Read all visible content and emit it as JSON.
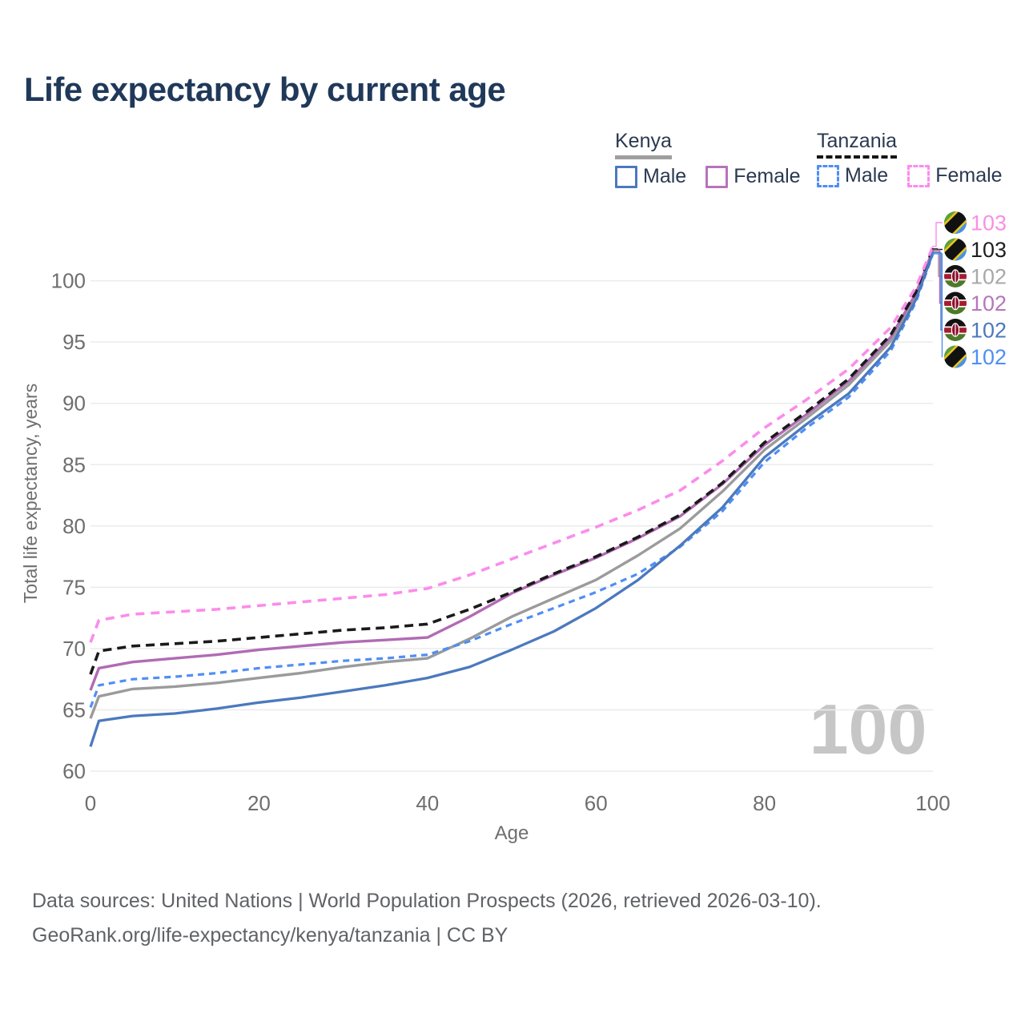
{
  "title": "Life expectancy by current age",
  "legend": {
    "groups": [
      {
        "label": "Kenya",
        "line_style": "solid",
        "underline_color": "#9e9e9e",
        "items": [
          {
            "label": "Male",
            "color": "#4b79bd",
            "dashed": false
          },
          {
            "label": "Female",
            "color": "#b873bd",
            "dashed": false
          }
        ]
      },
      {
        "label": "Tanzania",
        "line_style": "dashed",
        "underline_color": "#151515",
        "items": [
          {
            "label": "Male",
            "color": "#4f8ef5",
            "dashed": true
          },
          {
            "label": "Female",
            "color": "#fb8cec",
            "dashed": true
          }
        ]
      }
    ]
  },
  "chart_data": {
    "type": "line",
    "title": "Life expectancy by current age",
    "xlabel": "Age",
    "ylabel": "Total life expectancy, years",
    "xlim": [
      0,
      100
    ],
    "ylim": [
      60,
      103
    ],
    "x_ticks": [
      0,
      20,
      40,
      60,
      80,
      100
    ],
    "y_ticks": [
      60,
      65,
      70,
      75,
      80,
      85,
      90,
      95,
      100
    ],
    "grid": "horizontal",
    "grid_color": "#ebebeb",
    "tick_color": "#6e6e6e",
    "watermark": "100",
    "watermark_color": "#c6c6c6",
    "x": [
      0,
      1,
      5,
      10,
      15,
      20,
      25,
      30,
      35,
      40,
      45,
      50,
      55,
      60,
      65,
      70,
      75,
      80,
      85,
      90,
      95,
      98,
      100
    ],
    "series": [
      {
        "name": "Tanzania Female",
        "country": "Tanzania",
        "sex": "Female",
        "flag": "tz",
        "color": "#fb8cec",
        "dash": "11 8",
        "width": 3.6,
        "end_label": "103",
        "label_color": "#f98fe4",
        "values": [
          70.5,
          72.3,
          72.8,
          73.0,
          73.2,
          73.5,
          73.8,
          74.1,
          74.4,
          74.9,
          76.0,
          77.3,
          78.6,
          79.9,
          81.3,
          82.9,
          85.3,
          88.0,
          90.3,
          92.8,
          96.2,
          99.5,
          102.8
        ]
      },
      {
        "name": "Tanzania",
        "country": "Tanzania",
        "sex": "Both",
        "flag": "tz",
        "color": "#1a1a1a",
        "dash": "11 7",
        "width": 3.6,
        "end_label": "103",
        "label_color": "#1f1f1f",
        "values": [
          67.9,
          69.8,
          70.2,
          70.4,
          70.6,
          70.9,
          71.2,
          71.5,
          71.7,
          72.0,
          73.2,
          74.6,
          76.1,
          77.5,
          79.1,
          80.9,
          83.5,
          86.8,
          89.3,
          92.0,
          95.6,
          99.1,
          102.6
        ]
      },
      {
        "name": "Kenya",
        "country": "Kenya",
        "sex": "Both",
        "flag": "ke",
        "color": "#9b9b9b",
        "dash": null,
        "width": 3.4,
        "end_label": "102",
        "label_color": "#a8a8a8",
        "values": [
          64.3,
          66.1,
          66.7,
          66.9,
          67.2,
          67.6,
          68.0,
          68.5,
          68.9,
          69.2,
          70.8,
          72.6,
          74.1,
          75.6,
          77.6,
          79.8,
          82.8,
          86.2,
          88.8,
          91.5,
          95.1,
          98.8,
          102.4
        ]
      },
      {
        "name": "Kenya Female",
        "country": "Kenya",
        "sex": "Female",
        "flag": "ke",
        "color": "#b16bb4",
        "dash": null,
        "width": 3.4,
        "end_label": "102",
        "label_color": "#b477bc",
        "values": [
          66.6,
          68.4,
          68.9,
          69.2,
          69.5,
          69.9,
          70.2,
          70.5,
          70.7,
          70.9,
          72.6,
          74.5,
          76.0,
          77.4,
          79.0,
          80.8,
          83.4,
          86.6,
          89.1,
          91.8,
          95.4,
          99.0,
          102.5
        ]
      },
      {
        "name": "Kenya Male",
        "country": "Kenya",
        "sex": "Male",
        "flag": "ke",
        "color": "#4b79bd",
        "dash": null,
        "width": 3.3,
        "end_label": "102",
        "label_color": "#4b79bd",
        "values": [
          62.0,
          64.1,
          64.5,
          64.7,
          65.1,
          65.6,
          66.0,
          66.5,
          67.0,
          67.6,
          68.5,
          69.9,
          71.4,
          73.3,
          75.6,
          78.4,
          81.5,
          85.6,
          88.3,
          90.8,
          94.6,
          98.5,
          102.3
        ]
      },
      {
        "name": "Tanzania Male",
        "country": "Tanzania",
        "sex": "Male",
        "flag": "tz",
        "color": "#4f8ef5",
        "dash": "8 6",
        "width": 3.2,
        "end_label": "102",
        "label_color": "#4f8ef5",
        "values": [
          65.2,
          67.0,
          67.5,
          67.7,
          68.0,
          68.4,
          68.7,
          69.0,
          69.2,
          69.5,
          70.6,
          72.0,
          73.3,
          74.6,
          76.1,
          78.3,
          81.2,
          85.2,
          88.0,
          90.5,
          94.3,
          98.3,
          102.2
        ]
      }
    ],
    "legend_position": "top-right"
  },
  "footer": {
    "line1": "Data sources: United Nations | World Population Prospects (2026, retrieved 2026-03-10).",
    "line2": "GeoRank.org/life-expectancy/kenya/tanzania | CC BY"
  }
}
